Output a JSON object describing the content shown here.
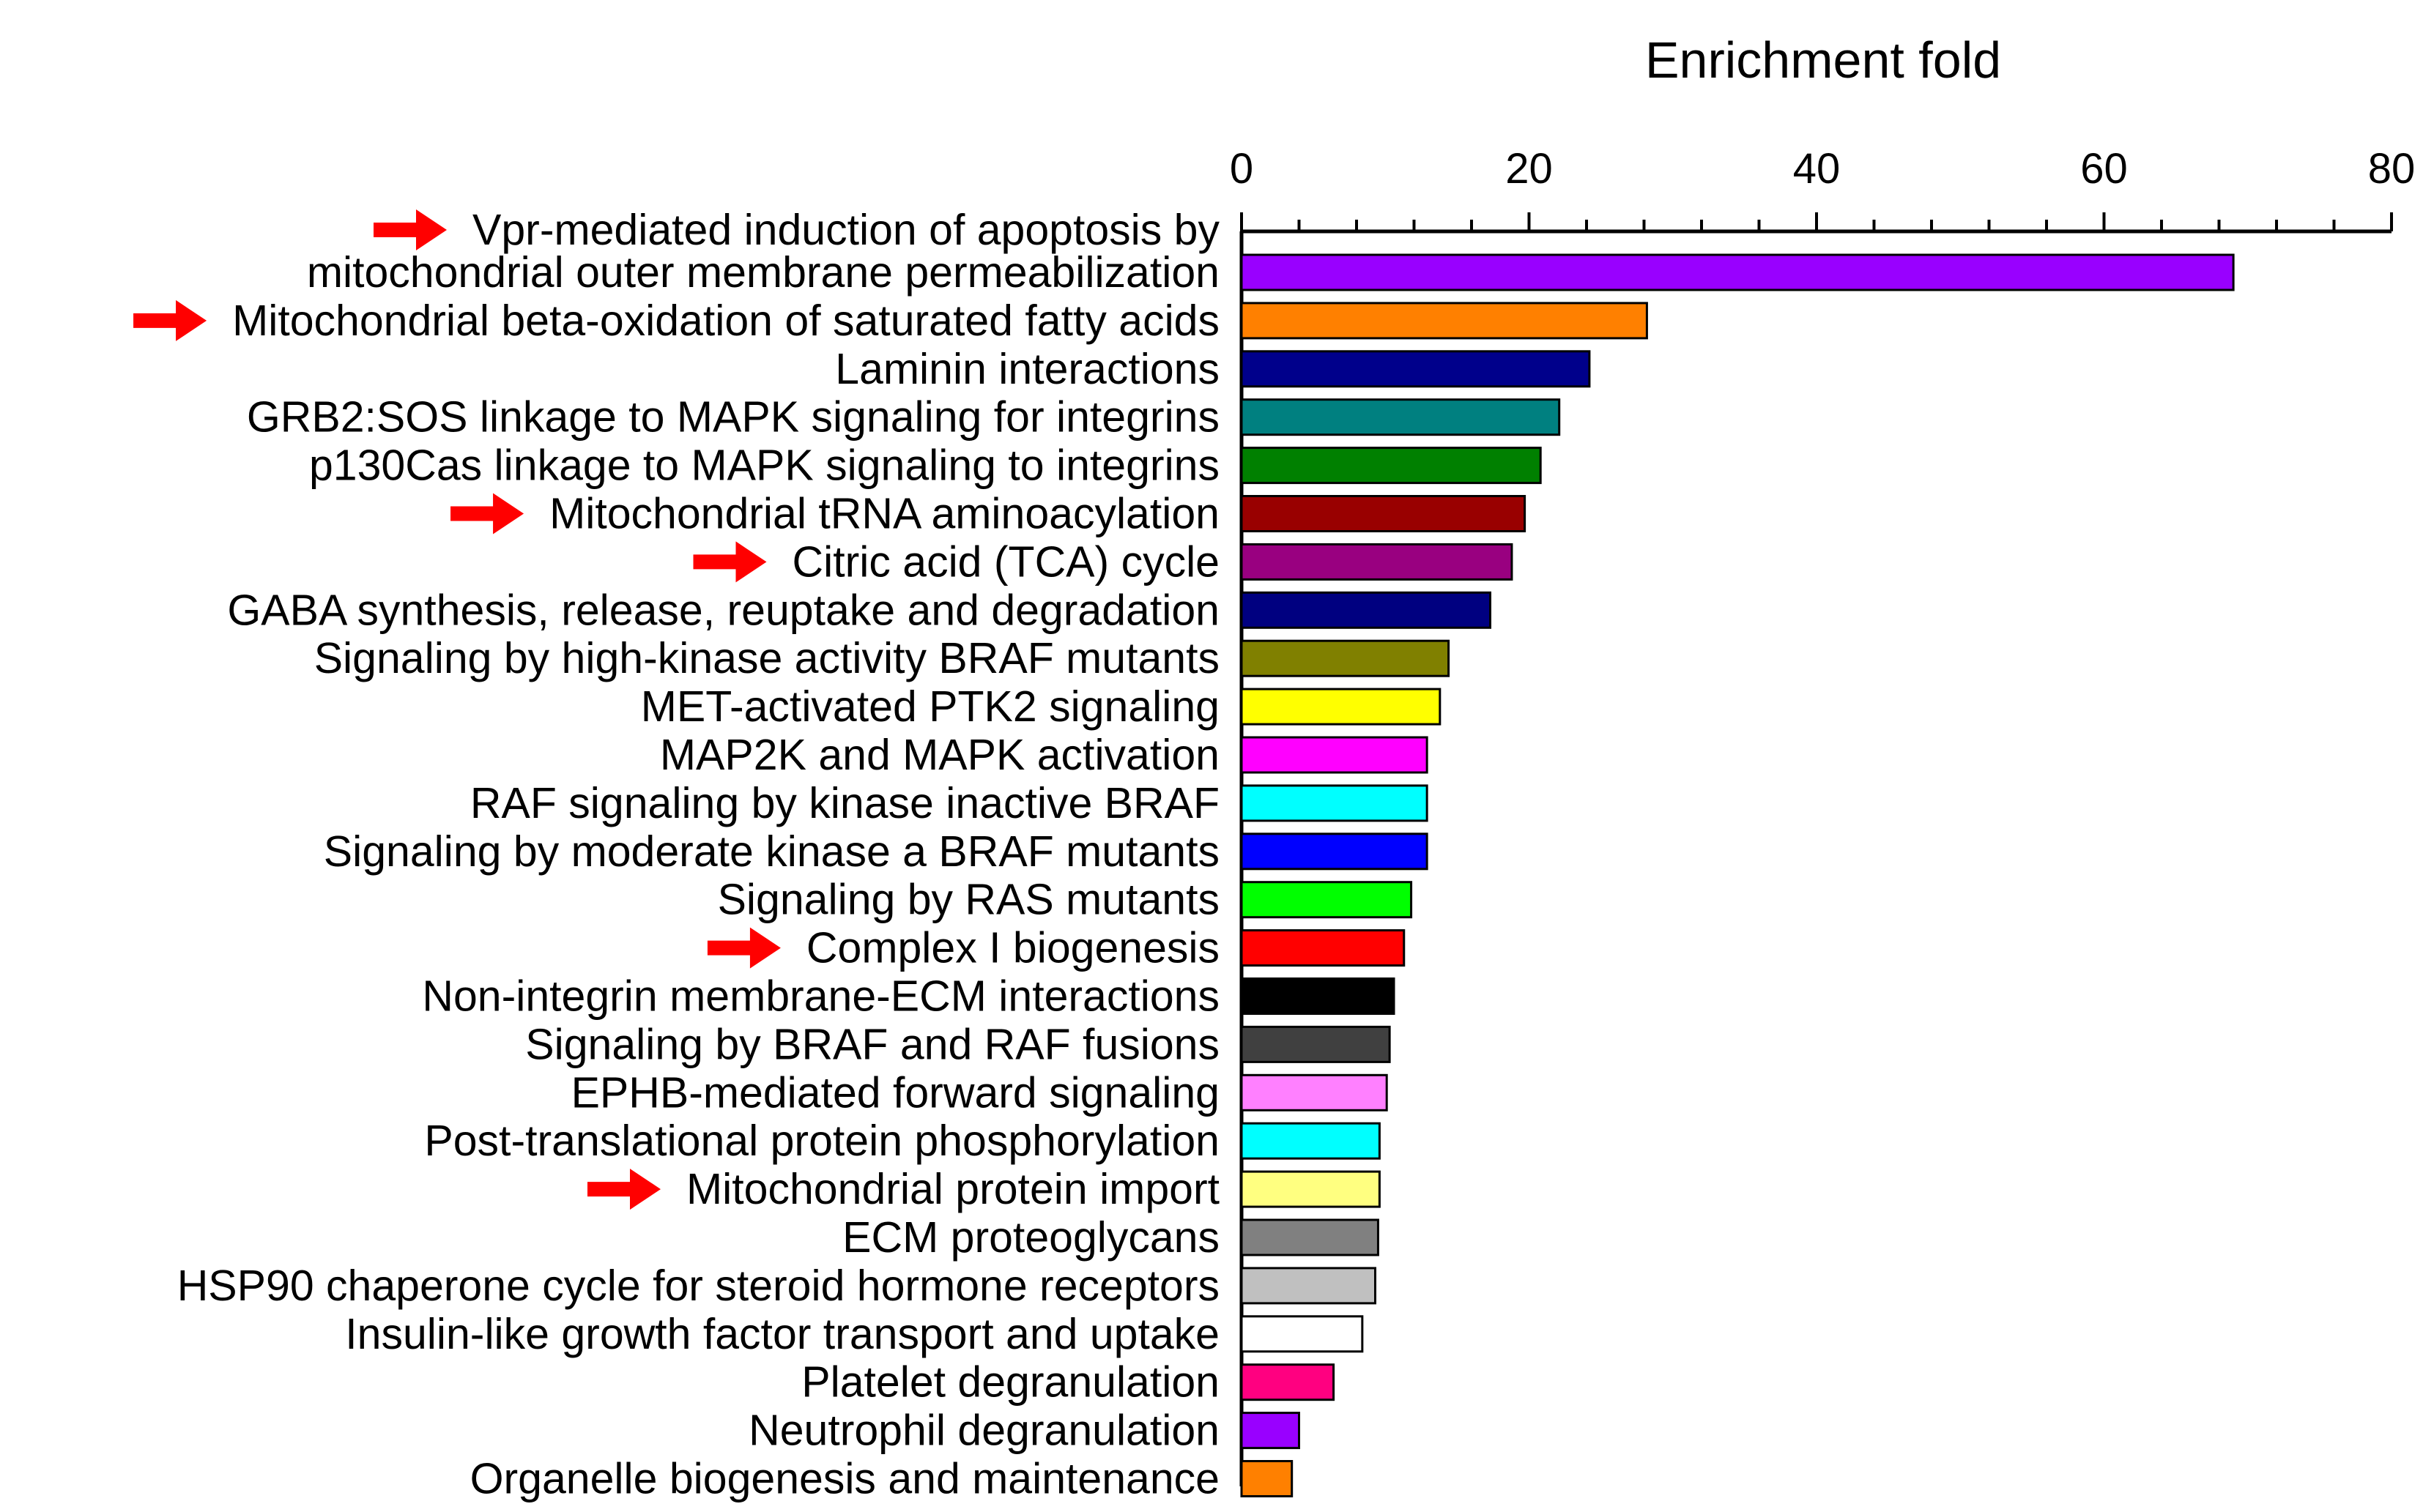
{
  "chart_data": {
    "type": "bar",
    "orientation": "horizontal",
    "title": "",
    "xlabel": "Enrichment fold",
    "ylabel": "",
    "xlim": [
      0,
      80
    ],
    "x_ticks": [
      "0",
      "20",
      "40",
      "60",
      "80"
    ],
    "x_axis_position": "top",
    "grid": false,
    "categories": [
      {
        "label_lines": [
          "Vpr-mediated induction of apoptosis by",
          "mitochondrial outer membrane permeabilization"
        ],
        "value": 69,
        "color": "#9900ff",
        "arrow": true
      },
      {
        "label_lines": [
          "Mitochondrial beta-oxidation of saturated fatty acids"
        ],
        "value": 28.2,
        "color": "#ff8000",
        "arrow": true
      },
      {
        "label_lines": [
          "Laminin interactions"
        ],
        "value": 24.2,
        "color": "#00008b",
        "arrow": false
      },
      {
        "label_lines": [
          "GRB2:SOS linkage to MAPK signaling for integrins"
        ],
        "value": 22.1,
        "color": "#008080",
        "arrow": false
      },
      {
        "label_lines": [
          "p130Cas linkage to MAPK signaling to integrins"
        ],
        "value": 20.8,
        "color": "#008000",
        "arrow": false
      },
      {
        "label_lines": [
          "Mitochondrial tRNA aminoacylation"
        ],
        "value": 19.7,
        "color": "#990000",
        "arrow": true
      },
      {
        "label_lines": [
          "Citric acid (TCA) cycle"
        ],
        "value": 18.8,
        "color": "#990080",
        "arrow": true
      },
      {
        "label_lines": [
          "GABA synthesis, release, reuptake and degradation"
        ],
        "value": 17.3,
        "color": "#000080",
        "arrow": false
      },
      {
        "label_lines": [
          "Signaling by high-kinase activity BRAF mutants"
        ],
        "value": 14.4,
        "color": "#808000",
        "arrow": false
      },
      {
        "label_lines": [
          "MET-activated PTK2 signaling"
        ],
        "value": 13.8,
        "color": "#ffff00",
        "arrow": false
      },
      {
        "label_lines": [
          "MAP2K and MAPK activation"
        ],
        "value": 12.9,
        "color": "#ff00ff",
        "arrow": false
      },
      {
        "label_lines": [
          "RAF signaling by kinase inactive BRAF"
        ],
        "value": 12.9,
        "color": "#00ffff",
        "arrow": false
      },
      {
        "label_lines": [
          "Signaling by moderate kinase a BRAF mutants"
        ],
        "value": 12.9,
        "color": "#0000ff",
        "arrow": false
      },
      {
        "label_lines": [
          "Signaling by RAS mutants"
        ],
        "value": 11.8,
        "color": "#00ff00",
        "arrow": false
      },
      {
        "label_lines": [
          "Complex I biogenesis"
        ],
        "value": 11.3,
        "color": "#ff0000",
        "arrow": true
      },
      {
        "label_lines": [
          "Non-integrin membrane-ECM interactions"
        ],
        "value": 10.6,
        "color": "#000000",
        "arrow": false
      },
      {
        "label_lines": [
          "Signaling by BRAF and RAF fusions"
        ],
        "value": 10.3,
        "color": "#404040",
        "arrow": false
      },
      {
        "label_lines": [
          "EPHB-mediated forward signaling"
        ],
        "value": 10.1,
        "color": "#ff80ff",
        "arrow": false
      },
      {
        "label_lines": [
          "Post-translational protein phosphorylation"
        ],
        "value": 9.6,
        "color": "#00ffff",
        "arrow": false
      },
      {
        "label_lines": [
          "Mitochondrial protein import"
        ],
        "value": 9.6,
        "color": "#ffff80",
        "arrow": true
      },
      {
        "label_lines": [
          "ECM proteoglycans"
        ],
        "value": 9.5,
        "color": "#808080",
        "arrow": false
      },
      {
        "label_lines": [
          "HSP90 chaperone cycle for steroid hormone receptors"
        ],
        "value": 9.3,
        "color": "#c0c0c0",
        "arrow": false
      },
      {
        "label_lines": [
          "Insulin-like growth factor transport and uptake"
        ],
        "value": 8.4,
        "color": "#ffffff",
        "arrow": false
      },
      {
        "label_lines": [
          "Platelet degranulation"
        ],
        "value": 6.4,
        "color": "#ff0080",
        "arrow": false
      },
      {
        "label_lines": [
          "Neutrophil degranulation"
        ],
        "value": 4.0,
        "color": "#9900ff",
        "arrow": false
      },
      {
        "label_lines": [
          "Organelle biogenesis and maintenance"
        ],
        "value": 3.5,
        "color": "#ff8000",
        "arrow": false
      }
    ],
    "arrow_color": "#ff0000",
    "bar_stroke": "#000000"
  }
}
